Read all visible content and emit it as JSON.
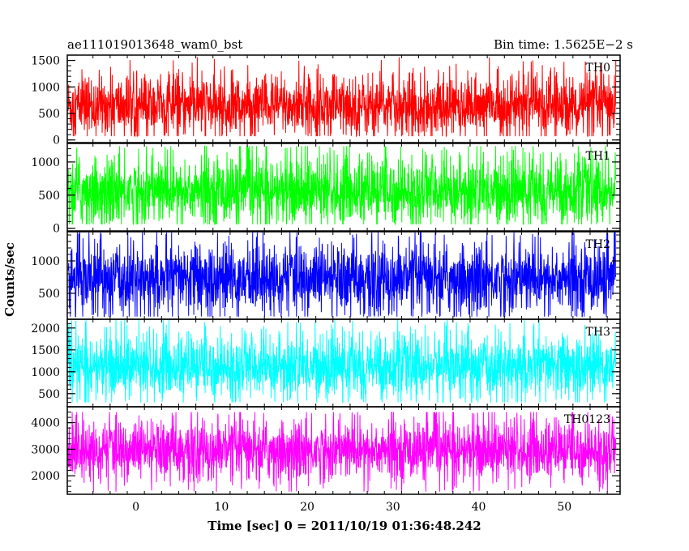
{
  "chart_data": {
    "type": "line",
    "title": "ae111019013648_wam0_bst",
    "subtitle": "Bin time: 1.5625E−2 s",
    "xlabel": "Time [sec] 0 = 2011/10/19 01:36:48.242",
    "ylabel": "Counts/sec",
    "xlim": [
      -8,
      56.5
    ],
    "x_ticks": [
      0,
      10,
      20,
      30,
      40,
      50
    ],
    "x_tick_labels": [
      "0",
      "10",
      "20",
      "30",
      "40",
      "50"
    ],
    "data_x_range": [
      -7.9,
      56.0
    ],
    "bin_time_s": 0.015625,
    "panels": [
      {
        "name": "TH0",
        "color": "#ff0000",
        "ylim": [
          -50,
          1600
        ],
        "y_ticks": [
          0,
          500,
          1000,
          1500
        ],
        "y_tick_labels": [
          "0",
          "500",
          "1000",
          "1500"
        ],
        "mean": 640,
        "spread": 290,
        "min": 70,
        "max": 1560
      },
      {
        "name": "TH1",
        "color": "#00ff00",
        "ylim": [
          -40,
          1280
        ],
        "y_ticks": [
          0,
          500,
          1000
        ],
        "y_tick_labels": [
          "0",
          "500",
          "1000"
        ],
        "mean": 560,
        "spread": 260,
        "min": 60,
        "max": 1240
      },
      {
        "name": "TH2",
        "color": "#0000ff",
        "ylim": [
          100,
          1450
        ],
        "y_ticks": [
          500,
          1000
        ],
        "y_tick_labels": [
          "500",
          "1000"
        ],
        "mean": 720,
        "spread": 270,
        "min": 140,
        "max": 1440
      },
      {
        "name": "TH3",
        "color": "#00ffff",
        "ylim": [
          200,
          2200
        ],
        "y_ticks": [
          500,
          1000,
          1500,
          2000
        ],
        "y_tick_labels": [
          "500",
          "1000",
          "1500",
          "2000"
        ],
        "mean": 1120,
        "spread": 360,
        "min": 300,
        "max": 2180
      },
      {
        "name": "TH0123",
        "color": "#ff00ff",
        "ylim": [
          1300,
          4600
        ],
        "y_ticks": [
          2000,
          3000,
          4000
        ],
        "y_tick_labels": [
          "2000",
          "3000",
          "4000"
        ],
        "mean": 2950,
        "spread": 560,
        "min": 1400,
        "max": 4400
      }
    ],
    "grid": false,
    "legend": "none"
  }
}
